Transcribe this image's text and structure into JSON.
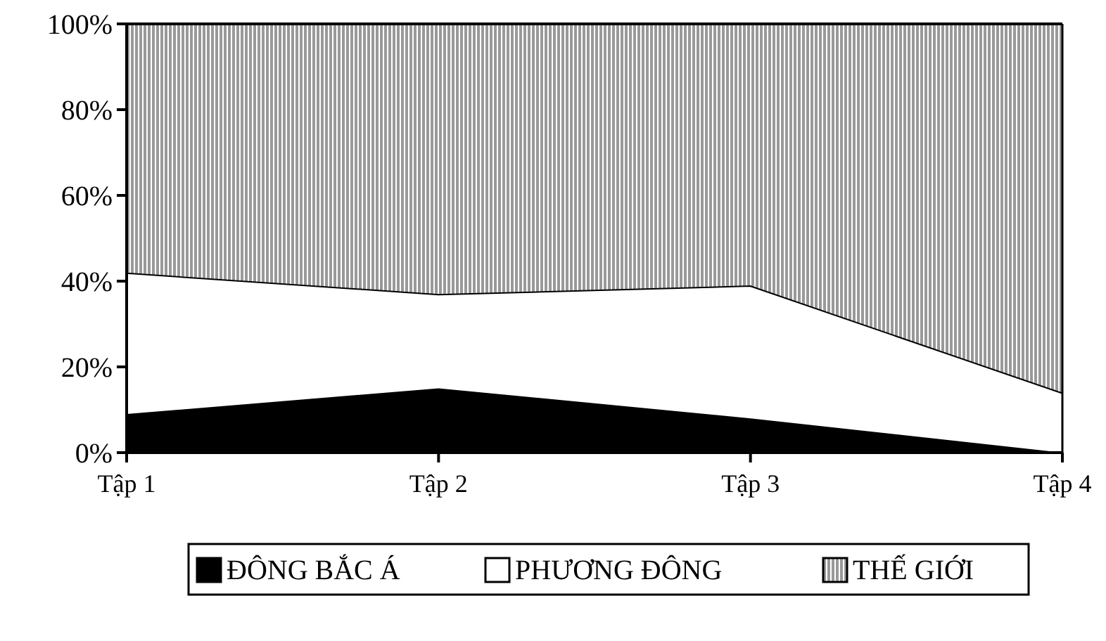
{
  "chart_data": {
    "type": "area",
    "stacked": true,
    "categories": [
      "Tập 1",
      "Tập 2",
      "Tập 3",
      "Tập 4"
    ],
    "series": [
      {
        "name": "ĐÔNG BẮC Á",
        "color": "#000000",
        "values": [
          9,
          15,
          8,
          0
        ]
      },
      {
        "name": "PHƯƠNG ĐÔNG",
        "color": "#ffffff",
        "values": [
          33,
          22,
          31,
          14
        ]
      },
      {
        "name": "THẾ GIỚI",
        "color": "#999999",
        "values": [
          58,
          63,
          61,
          86
        ]
      }
    ],
    "ylim": [
      0,
      100
    ],
    "yticks": [
      {
        "value": 0,
        "label": "0%"
      },
      {
        "value": 20,
        "label": "20%"
      },
      {
        "value": 40,
        "label": "40%"
      },
      {
        "value": 60,
        "label": "60%"
      },
      {
        "value": 80,
        "label": "80%"
      },
      {
        "value": 100,
        "label": "100%"
      }
    ],
    "legend": "bottom"
  }
}
